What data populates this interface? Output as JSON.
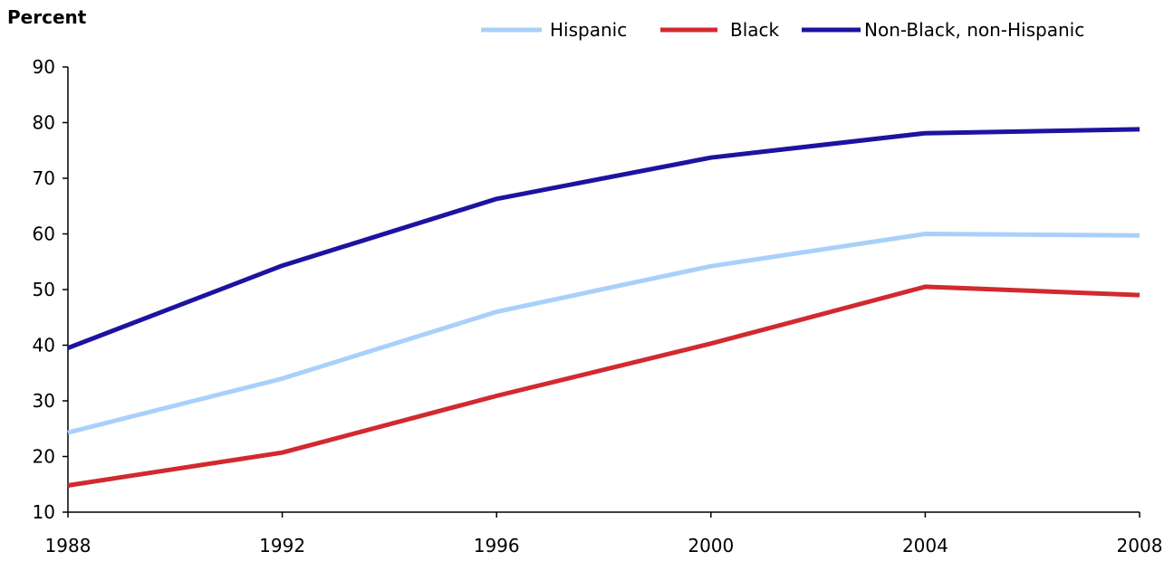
{
  "chart_data": {
    "type": "line",
    "title": "",
    "xlabel": "",
    "ylabel": "Percent",
    "ylim": [
      10,
      90
    ],
    "xlim": [
      1988,
      2008
    ],
    "yticks": [
      10,
      20,
      30,
      40,
      50,
      60,
      70,
      80,
      90
    ],
    "x": [
      1988,
      1992,
      1996,
      2000,
      2004,
      2008
    ],
    "grid": false,
    "legend_position": "top-right",
    "series": [
      {
        "name": "Hispanic",
        "color": "#aad0fa",
        "values": [
          24.3,
          34.0,
          46.0,
          54.2,
          60.0,
          59.7
        ]
      },
      {
        "name": "Black",
        "color": "#d12a2f",
        "values": [
          14.8,
          20.7,
          30.9,
          40.3,
          50.5,
          49.0
        ]
      },
      {
        "name": "Non-Black, non-Hispanic",
        "color": "#1c14a0",
        "values": [
          39.5,
          54.3,
          66.3,
          73.7,
          78.1,
          78.8
        ]
      }
    ]
  }
}
